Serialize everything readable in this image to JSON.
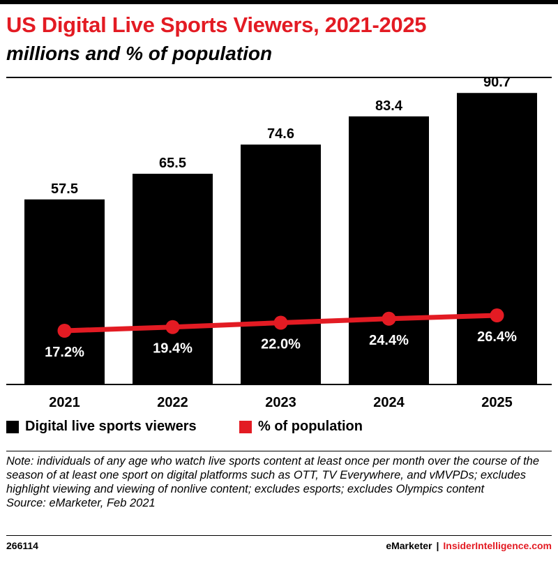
{
  "header": {
    "title": "US Digital Live Sports Viewers, 2021-2025",
    "subtitle": "millions and % of population"
  },
  "chart_data": {
    "type": "bar",
    "categories": [
      "2021",
      "2022",
      "2023",
      "2024",
      "2025"
    ],
    "series": [
      {
        "name": "Digital live sports viewers",
        "type": "bar",
        "values": [
          57.5,
          65.5,
          74.6,
          83.4,
          90.7
        ],
        "labels": [
          "57.5",
          "65.5",
          "74.6",
          "83.4",
          "90.7"
        ],
        "color": "#000000"
      },
      {
        "name": "% of population",
        "type": "line",
        "values": [
          17.2,
          19.4,
          22.0,
          24.4,
          26.4
        ],
        "labels": [
          "17.2%",
          "19.4%",
          "22.0%",
          "24.4%",
          "26.4%"
        ],
        "color": "#e31b23"
      }
    ],
    "legend_position": "bottom-left",
    "grid": false
  },
  "legend": {
    "items": [
      {
        "label": "Digital live sports viewers",
        "color": "#000000"
      },
      {
        "label": "% of population",
        "color": "#e31b23"
      }
    ]
  },
  "note": {
    "text": "Note: individuals of any age who watch live sports content at least once per month over the course of the season of at least one sport on digital platforms such as OTT, TV Everywhere, and vMVPDs; excludes highlight viewing and viewing of nonlive content; excludes esports; excludes Olympics content",
    "source": "Source: eMarketer, Feb 2021"
  },
  "footer": {
    "id": "266114",
    "brand": "eMarketer",
    "separator": "|",
    "brand2": "InsiderIntelligence.com"
  }
}
